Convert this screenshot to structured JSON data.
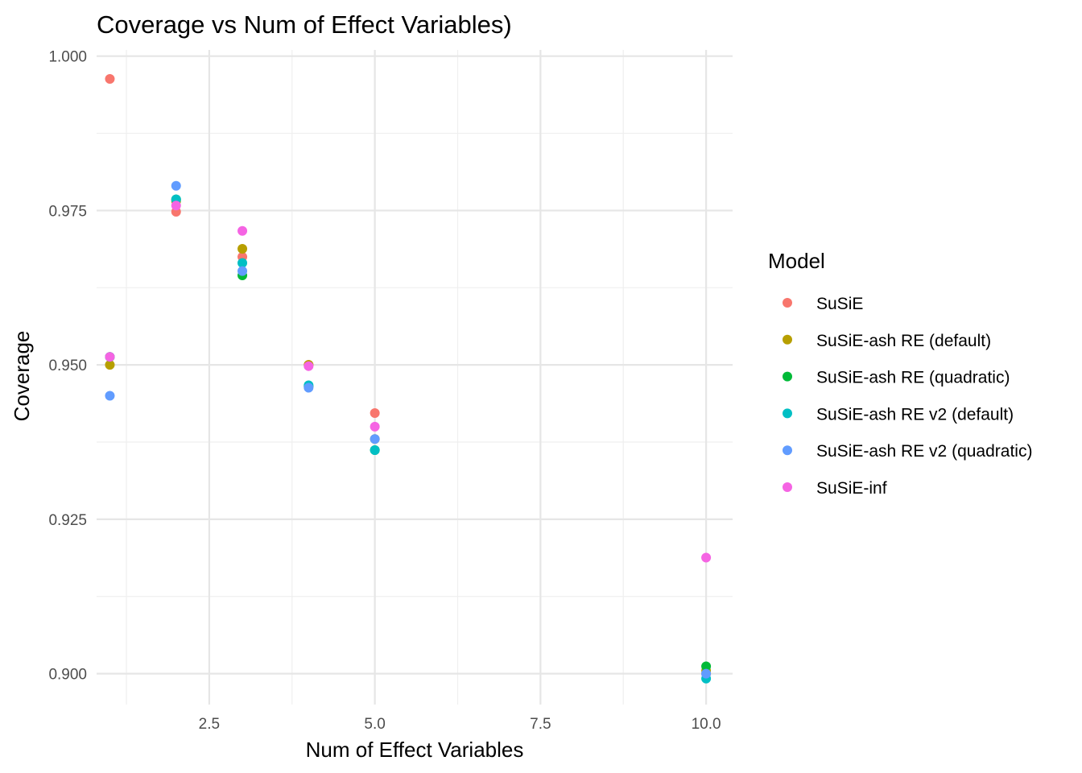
{
  "chart_data": {
    "type": "scatter",
    "title": "Coverage vs Num of Effect Variables)",
    "xlabel": "Num of Effect Variables",
    "ylabel": "Coverage",
    "xlim": [
      0.8,
      10.4
    ],
    "ylim": [
      0.895,
      1.001
    ],
    "x_ticks": [
      2.5,
      5.0,
      7.5,
      10.0
    ],
    "x_tick_labels": [
      "2.5",
      "5.0",
      "7.5",
      "10.0"
    ],
    "x_minor_ticks": [
      1.25,
      3.75,
      6.25,
      8.75
    ],
    "y_ticks": [
      0.9,
      0.925,
      0.95,
      0.975,
      1.0
    ],
    "y_tick_labels": [
      "0.900",
      "0.925",
      "0.950",
      "0.975",
      "1.000"
    ],
    "y_minor_ticks": [
      0.9125,
      0.9375,
      0.9625,
      0.9875
    ],
    "grid": true,
    "legend_title": "Model",
    "legend_position": "right",
    "series": [
      {
        "name": "SuSiE",
        "color": "#F8766D",
        "points": [
          [
            1,
            0.9963
          ],
          [
            2,
            0.9748
          ],
          [
            3,
            0.9675
          ],
          [
            4,
            0.95
          ],
          [
            5,
            0.9422
          ],
          [
            10,
            0.9
          ]
        ]
      },
      {
        "name": "SuSiE-ash RE (default)",
        "color": "#B79F00",
        "points": [
          [
            1,
            0.95
          ],
          [
            2,
            0.9765
          ],
          [
            3,
            0.9688
          ],
          [
            4,
            0.95
          ],
          [
            5,
            0.938
          ],
          [
            10,
            0.9005
          ]
        ]
      },
      {
        "name": "SuSiE-ash RE (quadratic)",
        "color": "#00BA38",
        "points": [
          [
            1,
            0.9513
          ],
          [
            2,
            0.9768
          ],
          [
            3,
            0.9645
          ],
          [
            4,
            0.9465
          ],
          [
            5,
            0.9362
          ],
          [
            10,
            0.9012
          ]
        ]
      },
      {
        "name": "SuSiE-ash RE v2 (default)",
        "color": "#00BFC4",
        "points": [
          [
            1,
            0.9513
          ],
          [
            2,
            0.9768
          ],
          [
            3,
            0.9665
          ],
          [
            4,
            0.9467
          ],
          [
            5,
            0.9362
          ],
          [
            10,
            0.8992
          ]
        ]
      },
      {
        "name": "SuSiE-ash RE v2 (quadratic)",
        "color": "#619CFF",
        "points": [
          [
            1,
            0.945
          ],
          [
            2,
            0.979
          ],
          [
            3,
            0.9652
          ],
          [
            4,
            0.9463
          ],
          [
            5,
            0.938
          ],
          [
            10,
            0.9
          ]
        ]
      },
      {
        "name": "SuSiE-inf",
        "color": "#F564E3",
        "points": [
          [
            1,
            0.9513
          ],
          [
            2,
            0.9758
          ],
          [
            3,
            0.9717
          ],
          [
            4,
            0.9498
          ],
          [
            5,
            0.94
          ],
          [
            10,
            0.9188
          ]
        ]
      }
    ]
  }
}
